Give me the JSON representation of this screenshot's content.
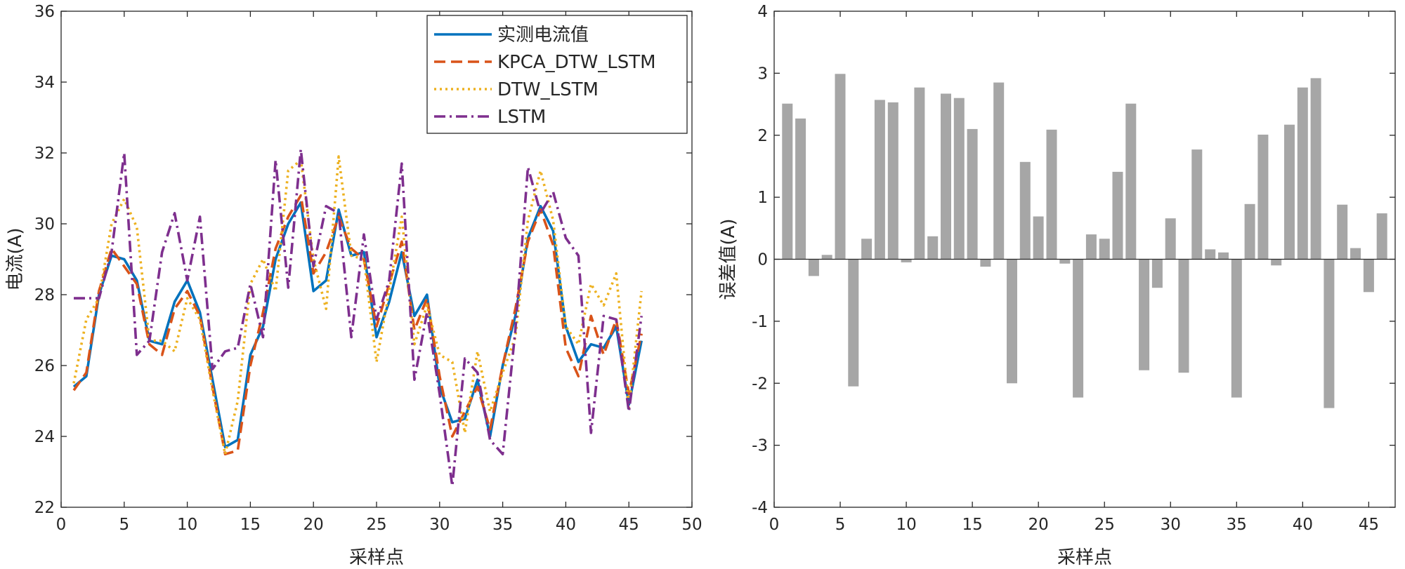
{
  "chart_data": [
    {
      "type": "line",
      "title": "",
      "xlabel": "采样点",
      "ylabel": "电流(A)",
      "xlim": [
        0,
        50
      ],
      "ylim": [
        22,
        36
      ],
      "xticks": [
        0,
        5,
        10,
        15,
        20,
        25,
        30,
        35,
        40,
        45,
        50
      ],
      "yticks": [
        22,
        24,
        26,
        28,
        30,
        32,
        34,
        36
      ],
      "legend_position": "top-right",
      "grid": false,
      "x": [
        1,
        2,
        3,
        4,
        5,
        6,
        7,
        8,
        9,
        10,
        11,
        12,
        13,
        14,
        15,
        16,
        17,
        18,
        19,
        20,
        21,
        22,
        23,
        24,
        25,
        26,
        27,
        28,
        29,
        30,
        31,
        32,
        33,
        34,
        35,
        36,
        37,
        38,
        39,
        40,
        41,
        42,
        43,
        44,
        45,
        46
      ],
      "series": [
        {
          "name": "实测电流值",
          "style": "solid",
          "color": "#0072BD",
          "values": [
            25.4,
            25.7,
            28.0,
            29.1,
            29.0,
            28.4,
            26.7,
            26.6,
            27.8,
            28.4,
            27.5,
            25.6,
            23.7,
            23.9,
            26.3,
            27.1,
            29.0,
            30.0,
            30.6,
            28.1,
            28.4,
            30.4,
            29.1,
            29.2,
            26.8,
            27.8,
            29.2,
            27.4,
            28.0,
            25.4,
            24.4,
            24.5,
            25.6,
            24.0,
            26.0,
            27.4,
            29.6,
            30.5,
            29.8,
            27.1,
            26.1,
            26.6,
            26.5,
            27.1,
            24.9,
            26.7
          ]
        },
        {
          "name": "KPCA_DTW_LSTM",
          "style": "dashed",
          "color": "#D95319",
          "values": [
            25.3,
            25.8,
            28.1,
            29.3,
            28.8,
            28.3,
            26.6,
            26.3,
            27.6,
            28.1,
            27.4,
            25.4,
            23.5,
            23.6,
            26.0,
            27.5,
            29.3,
            30.2,
            30.8,
            28.6,
            29.2,
            30.2,
            29.3,
            29.0,
            27.1,
            28.3,
            29.5,
            27.0,
            27.9,
            25.7,
            24.0,
            24.7,
            25.4,
            24.2,
            26.0,
            27.6,
            29.5,
            30.4,
            29.4,
            26.5,
            25.7,
            27.4,
            26.3,
            27.3,
            25.2,
            26.9
          ]
        },
        {
          "name": "DTW_LSTM",
          "style": "dotted",
          "color": "#EDB120",
          "values": [
            25.5,
            27.3,
            27.9,
            30.0,
            30.7,
            29.9,
            26.7,
            26.7,
            26.4,
            27.9,
            27.3,
            25.3,
            23.5,
            25.0,
            28.3,
            29.0,
            28.1,
            31.5,
            31.8,
            29.0,
            27.6,
            31.9,
            29.1,
            29.0,
            26.1,
            28.1,
            30.2,
            26.6,
            27.7,
            26.3,
            26.1,
            24.1,
            26.4,
            24.7,
            25.8,
            26.8,
            30.1,
            31.5,
            30.1,
            27.1,
            26.6,
            28.3,
            27.7,
            28.6,
            24.8,
            28.1
          ]
        },
        {
          "name": "LSTM",
          "style": "dashdot",
          "color": "#7E2F8E",
          "values": [
            27.9,
            27.9,
            27.9,
            29.2,
            32.0,
            26.3,
            26.7,
            29.2,
            30.3,
            28.4,
            30.2,
            25.9,
            26.4,
            26.5,
            28.3,
            26.8,
            31.8,
            28.2,
            32.1,
            28.8,
            30.5,
            30.3,
            26.8,
            29.7,
            27.3,
            28.4,
            31.7,
            25.6,
            27.5,
            25.2,
            22.6,
            26.2,
            25.8,
            23.9,
            23.5,
            27.0,
            31.6,
            30.3,
            30.9,
            29.6,
            29.1,
            24.1,
            27.4,
            27.3,
            24.7,
            27.4
          ]
        }
      ]
    },
    {
      "type": "bar",
      "title": "",
      "xlabel": "采样点",
      "ylabel": "误差值(A)",
      "xlim": [
        0,
        47
      ],
      "ylim": [
        -4,
        4
      ],
      "xticks": [
        0,
        5,
        10,
        15,
        20,
        25,
        30,
        35,
        40,
        45
      ],
      "yticks": [
        -4,
        -3,
        -2,
        -1,
        0,
        1,
        2,
        3,
        4
      ],
      "bar_color": "#A6A6A6",
      "grid": false,
      "x": [
        1,
        2,
        3,
        4,
        5,
        6,
        7,
        8,
        9,
        10,
        11,
        12,
        13,
        14,
        15,
        16,
        17,
        18,
        19,
        20,
        21,
        22,
        23,
        24,
        25,
        26,
        27,
        28,
        29,
        30,
        31,
        32,
        33,
        34,
        35,
        36,
        37,
        38,
        39,
        40,
        41,
        42,
        43,
        44,
        45,
        46
      ],
      "values": [
        2.51,
        2.27,
        -0.27,
        0.07,
        2.99,
        -2.05,
        0.33,
        2.57,
        2.53,
        -0.05,
        2.77,
        0.37,
        2.67,
        2.6,
        2.1,
        -0.12,
        2.85,
        -2.0,
        1.57,
        0.69,
        2.09,
        -0.07,
        -2.23,
        0.4,
        0.33,
        1.41,
        2.51,
        -1.79,
        -0.46,
        0.66,
        -1.83,
        1.77,
        0.16,
        0.11,
        -2.23,
        0.89,
        2.01,
        -0.1,
        2.17,
        2.77,
        2.92,
        -2.4,
        0.88,
        0.18,
        -0.53,
        0.74
      ]
    }
  ]
}
